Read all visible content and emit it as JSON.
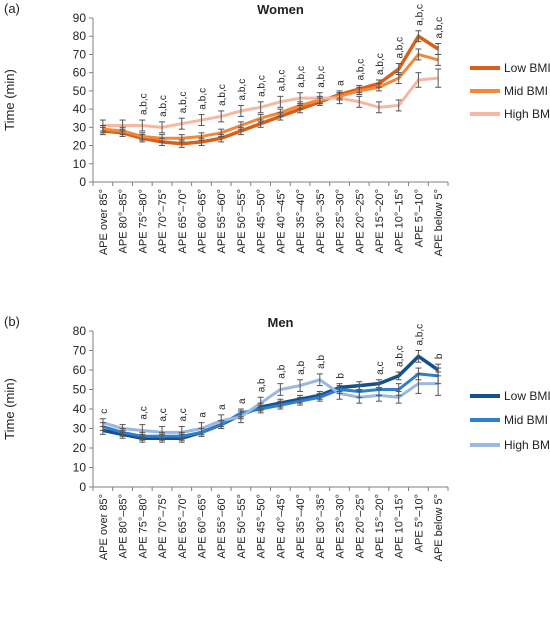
{
  "chart_data": [
    {
      "type": "line",
      "panel_label": "(a)",
      "title": "Women",
      "ylabel": "Time (min)",
      "xlabel": "",
      "ylim": [
        0,
        90
      ],
      "yticks": [
        0,
        10,
        20,
        30,
        40,
        50,
        60,
        70,
        80,
        90
      ],
      "categories": [
        "APE over 85°",
        "APE 80°–85°",
        "APE 75°–80°",
        "APE 70°–75°",
        "APE 65°–70°",
        "APE 60°–65°",
        "APE 55°–60°",
        "APE 50°–55°",
        "APE 45°–50°",
        "APE 40°–45°",
        "APE 35°–40°",
        "APE 30°–35°",
        "APE 25°–30°",
        "APE 20°–25°",
        "APE 15°–20°",
        "APE 10°–15°",
        "APE 5°–10°",
        "APE below 5°"
      ],
      "annotations": [
        "",
        "",
        "a,b,c",
        "a,b,c",
        "a,b,c",
        "a,b,c",
        "a,b,c",
        "a,b,c",
        "a,b,c",
        "a,b,c",
        "a,b,c",
        "a,b,c",
        "a",
        "a,b,c",
        "a,b,c",
        "a,b,c",
        "a,b,c",
        "a,b,c"
      ],
      "legend_position": "right",
      "grid": false,
      "series": [
        {
          "name": "Low BMI",
          "color": "#d9601a",
          "width": 3.5,
          "values": [
            28,
            27,
            24,
            22,
            21,
            22,
            24,
            28,
            32,
            36,
            40,
            44,
            48,
            51,
            54,
            62,
            80,
            73
          ],
          "errors": [
            2,
            2,
            2,
            2,
            2,
            2,
            2,
            2,
            2,
            2,
            2,
            2,
            2,
            2,
            2,
            3,
            3,
            3
          ]
        },
        {
          "name": "Mid BMI",
          "color": "#f4883a",
          "width": 3,
          "values": [
            29,
            28,
            25,
            24,
            24,
            25,
            27,
            31,
            35,
            38,
            42,
            45,
            47,
            50,
            52,
            57,
            70,
            67
          ],
          "errors": [
            2,
            2,
            2,
            2,
            2,
            2,
            2,
            2,
            2,
            2,
            2,
            2,
            2,
            2,
            2,
            3,
            3,
            3
          ]
        },
        {
          "name": "High BMI",
          "color": "#f6b8a2",
          "width": 3,
          "values": [
            31,
            31,
            31,
            30,
            32,
            34,
            36,
            39,
            41,
            44,
            46,
            46,
            46,
            44,
            41,
            42,
            56,
            57
          ],
          "errors": [
            3,
            3,
            3,
            3,
            3,
            3,
            3,
            3,
            3,
            3,
            3,
            3,
            3,
            3,
            3,
            3,
            4,
            5
          ]
        }
      ]
    },
    {
      "type": "line",
      "panel_label": "(b)",
      "title": "Men",
      "ylabel": "Time (min)",
      "xlabel": "",
      "ylim": [
        0,
        80
      ],
      "yticks": [
        0,
        10,
        20,
        30,
        40,
        50,
        60,
        70,
        80
      ],
      "categories": [
        "APE over 85°",
        "APE 80°–85°",
        "APE 75°–80°",
        "APE 70°–75°",
        "APE 65°–70°",
        "APE 60°–65°",
        "APE 55°–60°",
        "APE 50°–55°",
        "APE 45°–50°",
        "APE 40°–45°",
        "APE 35°–40°",
        "APE 30°–35°",
        "APE 25°–30°",
        "APE 20°–25°",
        "APE 15°–20°",
        "APE 10°–15°",
        "APE 5°–10°",
        "APE below 5°"
      ],
      "annotations": [
        "c",
        "",
        "a,c",
        "a,c",
        "a,c",
        "a",
        "a",
        "a",
        "a,b",
        "a,b",
        "a,b",
        "a,b",
        "b",
        "",
        "a,c",
        "a,b,c",
        "a,b,c",
        "b"
      ],
      "legend_position": "right",
      "grid": false,
      "series": [
        {
          "name": "Low BMI",
          "color": "#14508c",
          "width": 3.5,
          "values": [
            29,
            27,
            25,
            25,
            25,
            28,
            32,
            37,
            41,
            43,
            45,
            47,
            51,
            52,
            53,
            57,
            67,
            60
          ],
          "errors": [
            2,
            2,
            2,
            2,
            2,
            2,
            2,
            2,
            2,
            2,
            2,
            2,
            2,
            2,
            2,
            2,
            3,
            3
          ]
        },
        {
          "name": "Mid BMI",
          "color": "#2e7fcf",
          "width": 3,
          "values": [
            31,
            28,
            26,
            26,
            26,
            28,
            32,
            38,
            40,
            42,
            44,
            46,
            50,
            49,
            50,
            50,
            58,
            57
          ],
          "errors": [
            2,
            2,
            2,
            2,
            2,
            2,
            2,
            2,
            2,
            2,
            2,
            2,
            2,
            3,
            3,
            3,
            3,
            4
          ]
        },
        {
          "name": "High BMI",
          "color": "#9bb8e0",
          "width": 3,
          "values": [
            33,
            30,
            29,
            28,
            28,
            30,
            34,
            36,
            43,
            50,
            52,
            55,
            48,
            46,
            47,
            46,
            53,
            53
          ],
          "errors": [
            2,
            2,
            3,
            3,
            3,
            3,
            3,
            3,
            3,
            3,
            3,
            3,
            3,
            3,
            3,
            3,
            5,
            6
          ]
        }
      ]
    }
  ]
}
